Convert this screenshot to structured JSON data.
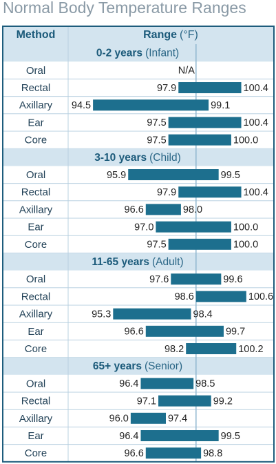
{
  "chart_data": {
    "type": "range_bar",
    "title": "Normal Body Temperature Ranges",
    "columns": {
      "method": "Method",
      "range": "Range",
      "unit": "(°F)"
    },
    "xlim": [
      93.5,
      101.7
    ],
    "reference_line": 98.6,
    "color": "#1d6f8e",
    "groups": [
      {
        "label": "0-2 years",
        "sublabel": "(Infant)",
        "rows": [
          {
            "method": "Oral",
            "note": "N/A"
          },
          {
            "method": "Rectal",
            "values": [
              97.9,
              100.4
            ],
            "value_labels": [
              "97.9",
              "100.4"
            ]
          },
          {
            "method": "Axillary",
            "values": [
              94.5,
              99.1
            ],
            "value_labels": [
              "94.5",
              "99.1"
            ]
          },
          {
            "method": "Ear",
            "values": [
              97.5,
              100.4
            ],
            "value_labels": [
              "97.5",
              "100.4"
            ]
          },
          {
            "method": "Core",
            "values": [
              97.5,
              100.0
            ],
            "value_labels": [
              "97.5",
              "100.0"
            ]
          }
        ]
      },
      {
        "label": "3-10 years",
        "sublabel": "(Child)",
        "rows": [
          {
            "method": "Oral",
            "values": [
              95.9,
              99.5
            ],
            "value_labels": [
              "95.9",
              "99.5"
            ]
          },
          {
            "method": "Rectal",
            "values": [
              97.9,
              100.4
            ],
            "value_labels": [
              "97.9",
              "100.4"
            ]
          },
          {
            "method": "Axillary",
            "values": [
              96.6,
              98.0
            ],
            "value_labels": [
              "96.6",
              "98.0"
            ]
          },
          {
            "method": "Ear",
            "values": [
              97.0,
              100.0
            ],
            "value_labels": [
              "97.0",
              "100.0"
            ]
          },
          {
            "method": "Core",
            "values": [
              97.5,
              100.0
            ],
            "value_labels": [
              "97.5",
              "100.0"
            ]
          }
        ]
      },
      {
        "label": "11-65 years",
        "sublabel": "(Adult)",
        "rows": [
          {
            "method": "Oral",
            "values": [
              97.6,
              99.6
            ],
            "value_labels": [
              "97.6",
              "99.6"
            ]
          },
          {
            "method": "Rectal",
            "values": [
              98.6,
              100.6
            ],
            "value_labels": [
              "98.6",
              "100.6"
            ]
          },
          {
            "method": "Axillary",
            "values": [
              95.3,
              98.4
            ],
            "value_labels": [
              "95.3",
              "98.4"
            ]
          },
          {
            "method": "Ear",
            "values": [
              96.6,
              99.7
            ],
            "value_labels": [
              "96.6",
              "99.7"
            ]
          },
          {
            "method": "Core",
            "values": [
              98.2,
              100.2
            ],
            "value_labels": [
              "98.2",
              "100.2"
            ]
          }
        ]
      },
      {
        "label": "65+ years",
        "sublabel": "(Senior)",
        "rows": [
          {
            "method": "Oral",
            "values": [
              96.4,
              98.5
            ],
            "value_labels": [
              "96.4",
              "98.5"
            ]
          },
          {
            "method": "Rectal",
            "values": [
              97.1,
              99.2
            ],
            "value_labels": [
              "97.1",
              "99.2"
            ]
          },
          {
            "method": "Axillary",
            "values": [
              96.0,
              97.4
            ],
            "value_labels": [
              "96.0",
              "97.4"
            ]
          },
          {
            "method": "Ear",
            "values": [
              96.4,
              99.5
            ],
            "value_labels": [
              "96.4",
              "99.5"
            ]
          },
          {
            "method": "Core",
            "values": [
              96.6,
              98.8
            ],
            "value_labels": [
              "96.6",
              "98.8"
            ]
          }
        ]
      }
    ]
  }
}
